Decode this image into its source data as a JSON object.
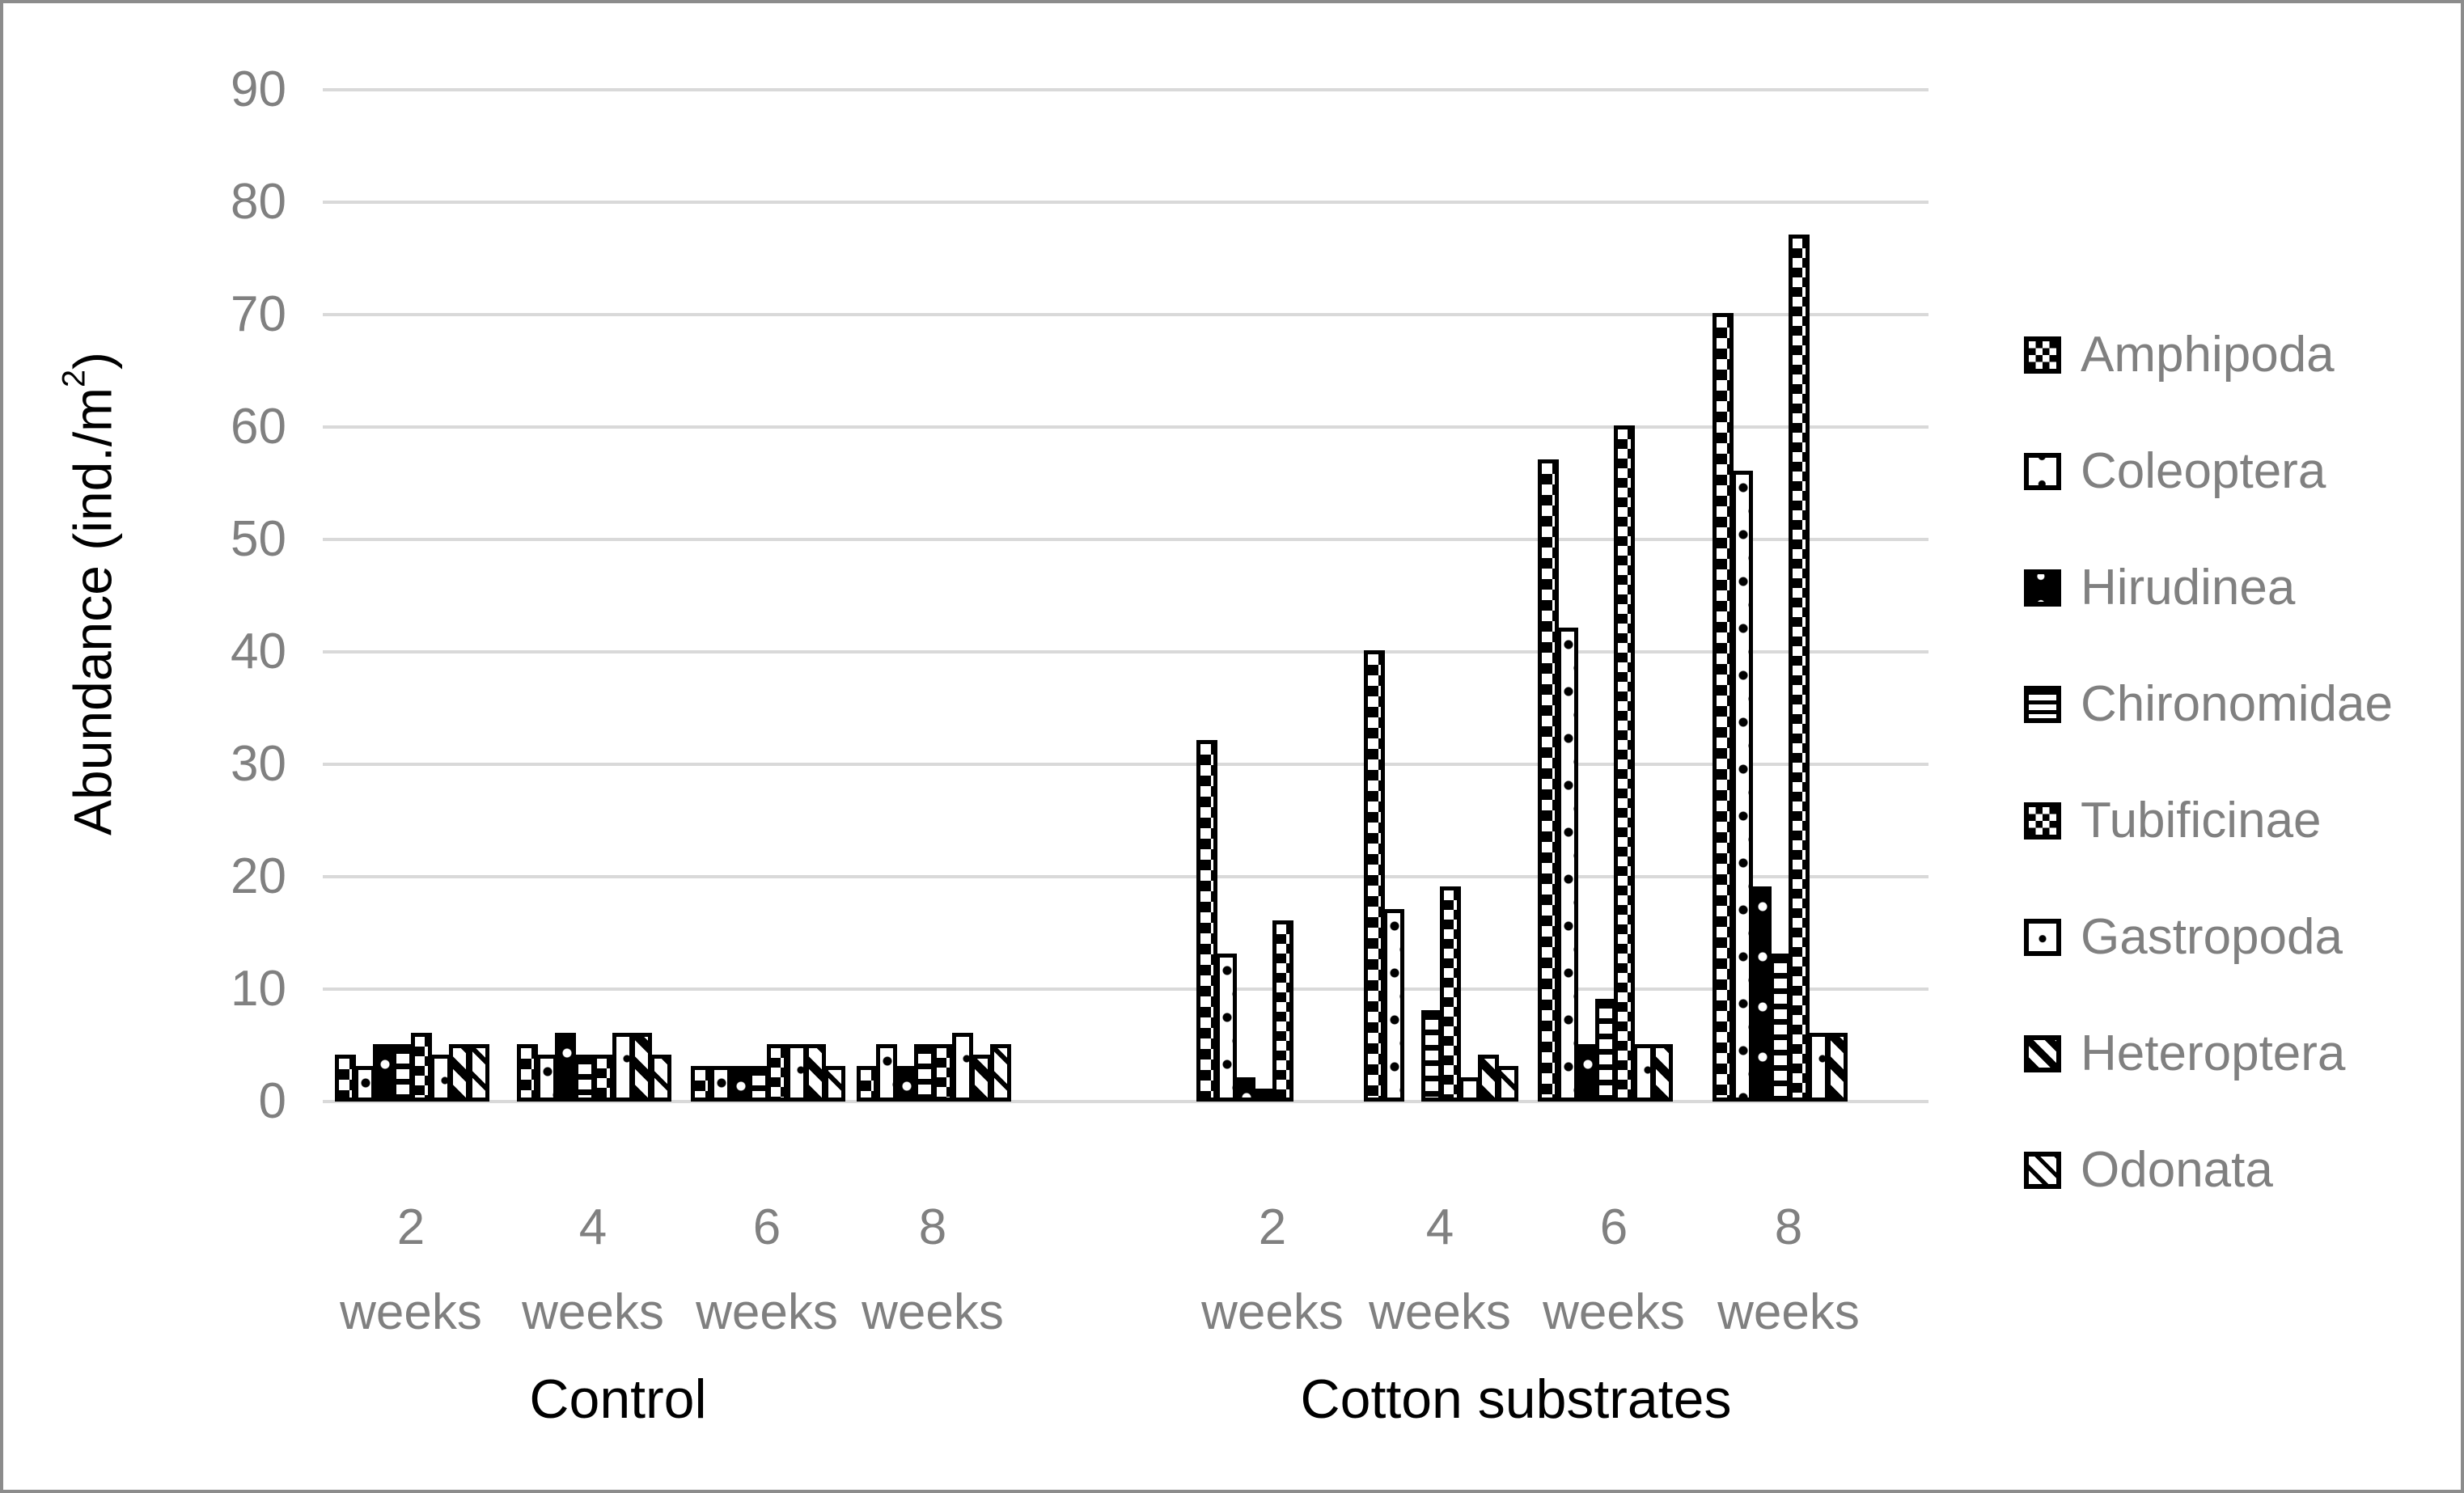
{
  "y_axis": {
    "label_pre": "Abundance (ind./m",
    "label_sup": "2",
    "label_post": ")"
  },
  "x_axis": {
    "week_numbers": [
      "2",
      "4",
      "6",
      "8"
    ],
    "week_unit": "weeks",
    "sections": [
      "Control",
      "Cotton substrates"
    ]
  },
  "legend": {
    "items": [
      {
        "label": "Amphipoda",
        "pattern": "amphipoda"
      },
      {
        "label": "Coleoptera",
        "pattern": "coleoptera"
      },
      {
        "label": "Hirudinea",
        "pattern": "hirudinea"
      },
      {
        "label": "Chironomidae",
        "pattern": "chironomidae"
      },
      {
        "label": "Tubificinae",
        "pattern": "tubificinae"
      },
      {
        "label": "Gastropoda",
        "pattern": "gastropoda"
      },
      {
        "label": "Heteroptera",
        "pattern": "heteroptera"
      },
      {
        "label": "Odonata",
        "pattern": "odonata"
      }
    ]
  },
  "colors": {
    "grid": "#d9d9d9",
    "tick_text": "#808080",
    "bar_outline": "#000000",
    "frame": "#8c8c8c"
  },
  "chart_data": {
    "type": "bar",
    "title": "",
    "xlabel": "",
    "ylabel": "Abundance (ind./m2)",
    "ylim": [
      0,
      90
    ],
    "y_ticks": [
      0,
      10,
      20,
      30,
      40,
      50,
      60,
      70,
      80,
      90
    ],
    "grid": true,
    "legend_position": "right",
    "sections": [
      "Control",
      "Cotton substrates"
    ],
    "categories": [
      "2 weeks",
      "4 weeks",
      "6 weeks",
      "8 weeks"
    ],
    "series": [
      {
        "name": "Amphipoda",
        "control": [
          4,
          5,
          3,
          3
        ],
        "cotton": [
          32,
          40,
          57,
          70
        ]
      },
      {
        "name": "Coleoptera",
        "control": [
          3,
          4,
          3,
          5
        ],
        "cotton": [
          13,
          17,
          42,
          56
        ]
      },
      {
        "name": "Hirudinea",
        "control": [
          5,
          6,
          3,
          3
        ],
        "cotton": [
          2,
          0,
          5,
          19
        ]
      },
      {
        "name": "Chironomidae",
        "control": [
          5,
          4,
          3,
          5
        ],
        "cotton": [
          1,
          8,
          9,
          13
        ]
      },
      {
        "name": "Tubificinae",
        "control": [
          6,
          4,
          5,
          5
        ],
        "cotton": [
          16,
          19,
          60,
          77
        ]
      },
      {
        "name": "Gastropoda",
        "control": [
          4,
          6,
          5,
          6
        ],
        "cotton": [
          0,
          2,
          5,
          6
        ]
      },
      {
        "name": "Heteroptera",
        "control": [
          5,
          6,
          5,
          4
        ],
        "cotton": [
          0,
          4,
          5,
          6
        ]
      },
      {
        "name": "Odonata",
        "control": [
          5,
          4,
          3,
          5
        ],
        "cotton": [
          0,
          3,
          0,
          0
        ]
      }
    ]
  }
}
